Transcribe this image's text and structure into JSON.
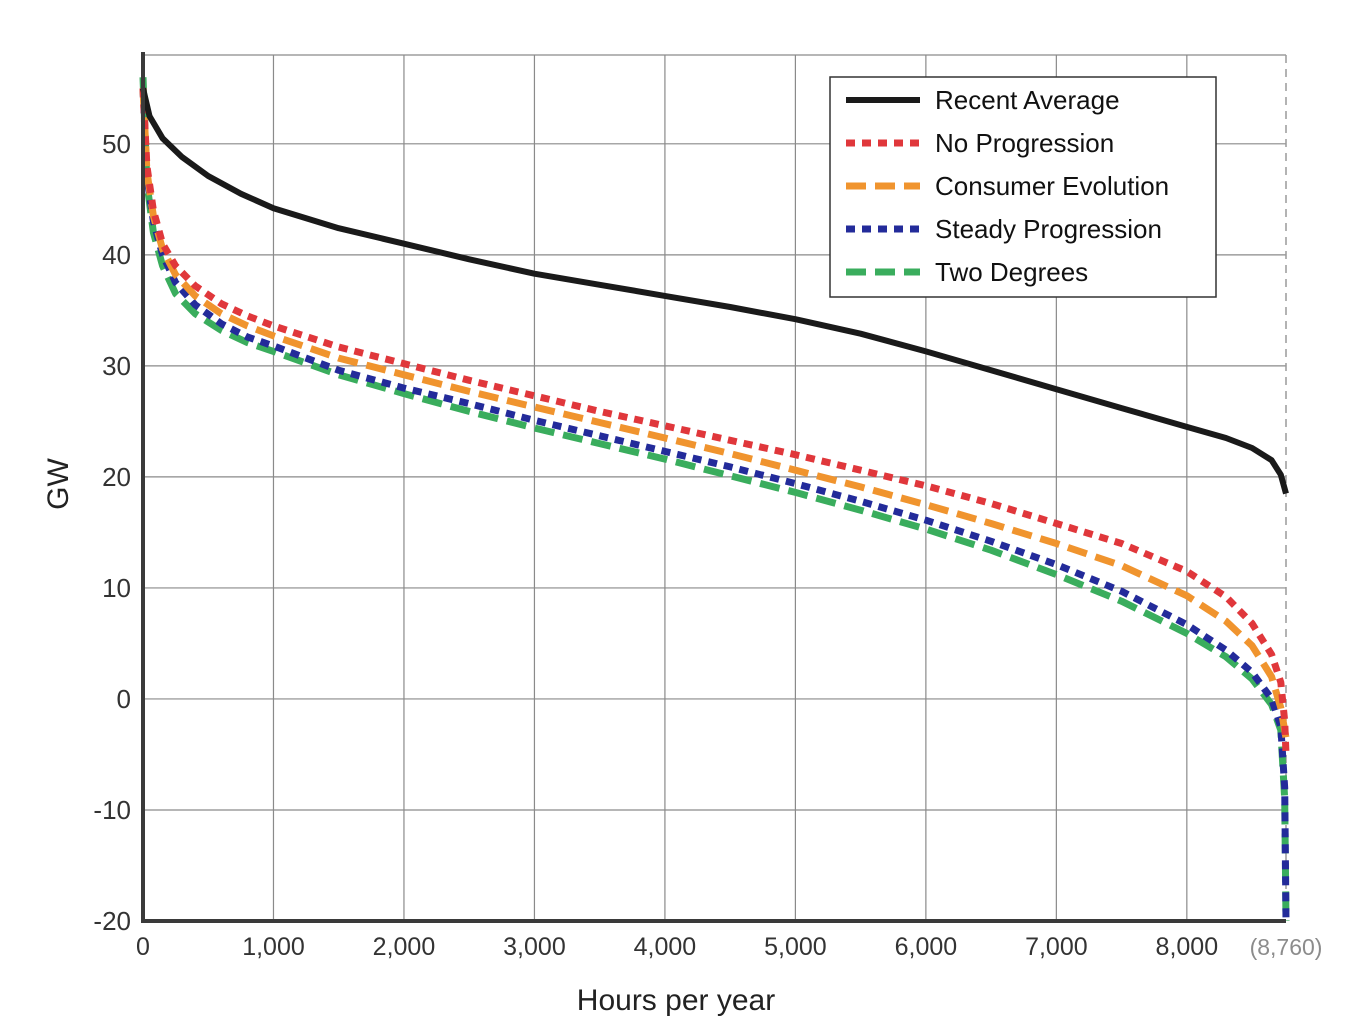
{
  "chart_data": {
    "type": "line",
    "title": "",
    "xlabel": "Hours per year",
    "ylabel": "GW",
    "xlim": [
      0,
      8760
    ],
    "ylim": [
      -20,
      58
    ],
    "x_ticks": [
      0,
      1000,
      2000,
      3000,
      4000,
      5000,
      6000,
      7000,
      8000
    ],
    "x_tick_labels": [
      "0",
      "1,000",
      "2,000",
      "3,000",
      "4,000",
      "5,000",
      "6,000",
      "7,000",
      "8,000"
    ],
    "x_end_label": "(8,760)",
    "y_ticks": [
      -20,
      -10,
      0,
      10,
      20,
      30,
      40,
      50
    ],
    "y_tick_labels": [
      "-20",
      "-10",
      "0",
      "10",
      "20",
      "30",
      "40",
      "50"
    ],
    "grid": true,
    "legend_position": "top-right",
    "series": [
      {
        "name": "Recent Average",
        "color": "#1a1a1a",
        "style": "solid",
        "x": [
          0,
          50,
          150,
          300,
          500,
          750,
          1000,
          1500,
          2000,
          2500,
          3000,
          3500,
          4000,
          4500,
          5000,
          5500,
          6000,
          6500,
          7000,
          7500,
          8000,
          8300,
          8500,
          8650,
          8720,
          8760
        ],
        "y": [
          55,
          52.5,
          50.5,
          48.8,
          47.1,
          45.5,
          44.2,
          42.4,
          41.0,
          39.6,
          38.3,
          37.3,
          36.3,
          35.3,
          34.2,
          32.9,
          31.3,
          29.6,
          27.9,
          26.2,
          24.5,
          23.5,
          22.6,
          21.5,
          20.2,
          18.5
        ]
      },
      {
        "name": "No Progression",
        "color": "#e0373b",
        "style": "dotted",
        "x": [
          0,
          30,
          80,
          150,
          250,
          400,
          600,
          800,
          1000,
          1500,
          2000,
          2500,
          3000,
          3500,
          4000,
          4500,
          5000,
          5500,
          6000,
          6500,
          7000,
          7500,
          8000,
          8300,
          8500,
          8650,
          8720,
          8750,
          8760
        ],
        "y": [
          55,
          48,
          44,
          41,
          39,
          37.2,
          35.6,
          34.5,
          33.6,
          31.7,
          30.2,
          28.7,
          27.3,
          25.9,
          24.6,
          23.3,
          22.0,
          20.6,
          19.2,
          17.6,
          15.8,
          14.0,
          11.5,
          9.2,
          6.8,
          4.0,
          1.5,
          -2.0,
          -5.0
        ]
      },
      {
        "name": "Consumer Evolution",
        "color": "#f0942e",
        "style": "dashed",
        "x": [
          0,
          30,
          80,
          150,
          250,
          400,
          600,
          800,
          1000,
          1500,
          2000,
          2500,
          3000,
          3500,
          4000,
          4500,
          5000,
          5500,
          6000,
          6500,
          7000,
          7500,
          8000,
          8300,
          8500,
          8650,
          8720,
          8760
        ],
        "y": [
          55,
          47.5,
          43.5,
          40.5,
          38.2,
          36.3,
          34.7,
          33.6,
          32.7,
          30.7,
          29.2,
          27.7,
          26.3,
          24.9,
          23.5,
          22.1,
          20.6,
          19.1,
          17.5,
          15.8,
          14.0,
          12.0,
          9.3,
          7.0,
          4.8,
          2.0,
          -0.8,
          -3.5
        ]
      },
      {
        "name": "Steady Progression",
        "color": "#232b9a",
        "style": "dotted",
        "x": [
          0,
          30,
          80,
          150,
          250,
          400,
          600,
          800,
          1000,
          1500,
          2000,
          2500,
          3000,
          3500,
          4000,
          4500,
          5000,
          5500,
          6000,
          6500,
          7000,
          7500,
          8000,
          8300,
          8500,
          8650,
          8720,
          8750,
          8760
        ],
        "y": [
          55,
          47,
          43,
          40,
          37.5,
          35.5,
          33.8,
          32.6,
          31.8,
          29.6,
          28.0,
          26.6,
          25.1,
          23.7,
          22.3,
          20.9,
          19.4,
          17.8,
          16.1,
          14.2,
          12.1,
          9.7,
          6.7,
          4.4,
          2.4,
          0,
          -2.5,
          -8.0,
          -20.0
        ]
      },
      {
        "name": "Two Degrees",
        "color": "#3aad5d",
        "style": "dashed",
        "x": [
          0,
          30,
          80,
          150,
          250,
          400,
          600,
          800,
          1000,
          1500,
          2000,
          2500,
          3000,
          3500,
          4000,
          4500,
          5000,
          5500,
          6000,
          6500,
          7000,
          7500,
          8000,
          8300,
          8500,
          8650,
          8720,
          8750,
          8760
        ],
        "y": [
          56,
          46.5,
          42,
          39,
          36.5,
          34.7,
          33.2,
          32.1,
          31.3,
          29.2,
          27.5,
          25.9,
          24.4,
          23.0,
          21.6,
          20.1,
          18.6,
          17.0,
          15.3,
          13.4,
          11.2,
          8.8,
          5.9,
          3.8,
          1.8,
          -0.5,
          -2.8,
          -9.0,
          -20.0
        ]
      }
    ]
  }
}
